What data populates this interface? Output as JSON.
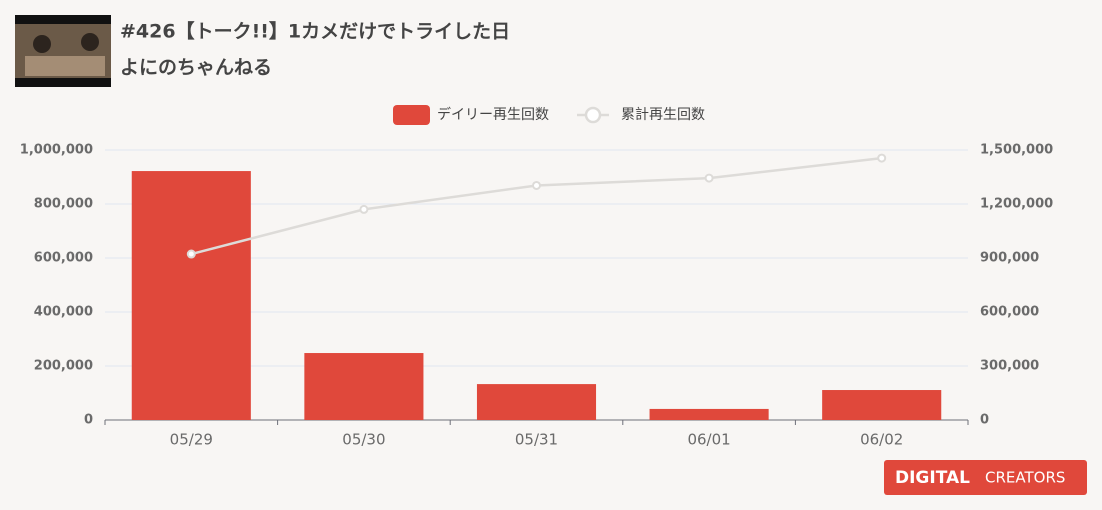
{
  "header": {
    "title": "#426【トーク!!】1カメだけでトライした日",
    "channel": "よにのちゃんねる"
  },
  "chart_data": {
    "type": "combo",
    "categories": [
      "05/29",
      "05/30",
      "05/31",
      "06/01",
      "06/02"
    ],
    "series": [
      {
        "name": "デイリー再生回数",
        "type": "bar",
        "color": "#e0483b",
        "values": [
          922000,
          248000,
          133000,
          41000,
          111000
        ]
      },
      {
        "name": "累計再生回数",
        "type": "line",
        "axis": "y2",
        "color": "#dddbd8",
        "values": [
          922000,
          1170000,
          1303000,
          1344000,
          1455000
        ]
      }
    ],
    "ylim": [
      0,
      1000000
    ],
    "yticks": [
      0,
      {
        "value": 200000,
        "label": "200,000"
      },
      {
        "value": 400000,
        "label": "400,000"
      },
      {
        "value": 600000,
        "label": "600,000"
      },
      {
        "value": 800000,
        "label": "800,000"
      },
      {
        "value": 1000000,
        "label": "1,000,000"
      }
    ],
    "y2lim": [
      0,
      1500000
    ],
    "y2ticks": [
      0,
      {
        "value": 300000,
        "label": "300,000"
      },
      {
        "value": 600000,
        "label": "600,000"
      },
      {
        "value": 900000,
        "label": "900,000"
      },
      {
        "value": 1200000,
        "label": "1,200,000"
      },
      {
        "value": 1500000,
        "label": "1,500,000"
      }
    ],
    "grid": true,
    "legend": "top"
  },
  "logo": {
    "brand": "DIGITAL",
    "sub": "CREATORS"
  }
}
